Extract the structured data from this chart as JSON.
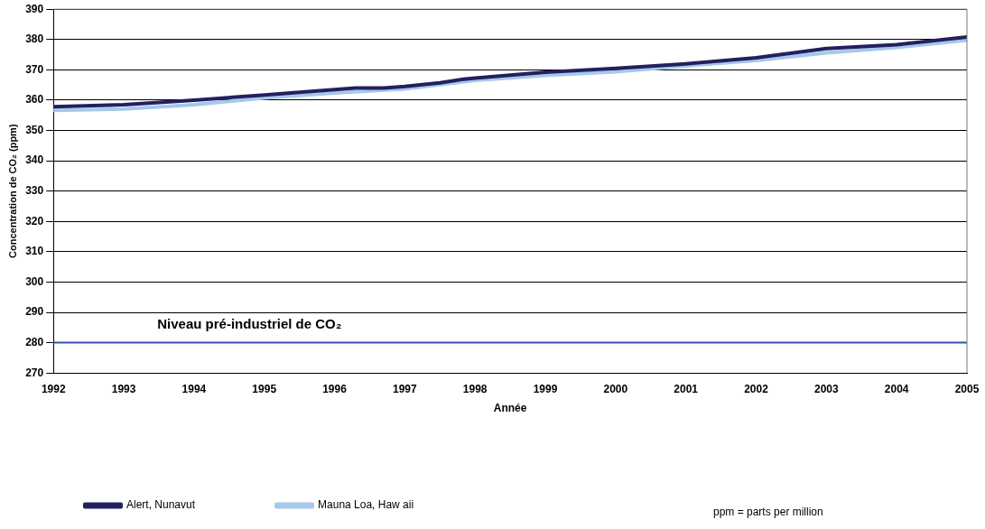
{
  "chart_data": {
    "type": "line",
    "xlabel": "Année",
    "ylabel": "Concentration de CO₂ (ppm)",
    "xlim": [
      1992,
      2005
    ],
    "xticks": [
      1992,
      1993,
      1994,
      1995,
      1996,
      1997,
      1998,
      1999,
      2000,
      2001,
      2002,
      2003,
      2004,
      2005
    ],
    "ylim": [
      270,
      390
    ],
    "yticks": [
      270,
      280,
      290,
      300,
      310,
      320,
      330,
      340,
      350,
      360,
      370,
      380,
      390
    ],
    "grid": "y",
    "legend": "bottom",
    "marker": "none",
    "line_style": "solid",
    "series": [
      {
        "name": "Alert, Nunavut",
        "color": "#22205f",
        "x": [
          1992,
          1993,
          1994,
          1995,
          1996,
          1996.3,
          1996.7,
          1997,
          1997.5,
          1997.8,
          1998,
          1999,
          2000,
          2001,
          2002,
          2003,
          2004,
          2005
        ],
        "values": [
          357.8,
          358.5,
          360,
          361.7,
          363.5,
          364,
          364,
          364.5,
          365.7,
          366.8,
          367.3,
          369.2,
          370.5,
          372,
          374,
          377,
          378.3,
          380.8
        ]
      },
      {
        "name": "Mauna Loa, Haw aii",
        "color": "#a6c8ea",
        "x": [
          1992,
          1993,
          1994,
          1995,
          1996,
          1997,
          1998,
          1999,
          2000,
          2001,
          2002,
          2003,
          2004,
          2005
        ],
        "values": [
          356.6,
          357.1,
          358.5,
          360.7,
          362.4,
          363.7,
          366.5,
          368.2,
          369.4,
          371.3,
          373.1,
          375.6,
          377.4,
          379.8
        ]
      }
    ],
    "ref_lines": [
      {
        "axis": "y",
        "value": 280,
        "label": "Niveau pré-industriel de CO₂",
        "color": "#3355aa"
      }
    ],
    "annotations": [
      "ppm = parts per million"
    ]
  }
}
